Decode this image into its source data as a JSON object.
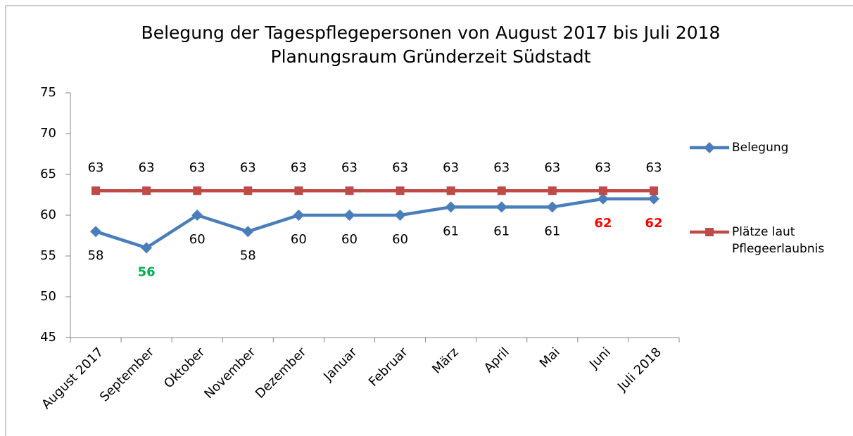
{
  "chart_data": {
    "type": "line",
    "title": "Belegung der Tagespflegepersonen von August 2017 bis Juli 2018",
    "subtitle": "Planungsraum Gründerzeit Südstadt",
    "categories": [
      "August 2017",
      "September",
      "Oktober",
      "November",
      "Dezember",
      "Januar",
      "Februar",
      "März",
      "April",
      "Mai",
      "Juni",
      "Juli 2018"
    ],
    "series": [
      {
        "name": "Belegung",
        "color": "#4a7ebb",
        "marker": "diamond",
        "label_position": "below",
        "values": [
          58,
          56,
          60,
          58,
          60,
          60,
          60,
          61,
          61,
          61,
          62,
          62
        ],
        "label_colors": [
          null,
          "#00b050",
          null,
          null,
          null,
          null,
          null,
          null,
          null,
          null,
          "#ff0000",
          "#ff0000"
        ]
      },
      {
        "name": "Plätze laut Pflegeerlaubnis",
        "color": "#be4b48",
        "marker": "square",
        "label_position": "above",
        "values": [
          63,
          63,
          63,
          63,
          63,
          63,
          63,
          63,
          63,
          63,
          63,
          63
        ]
      }
    ],
    "ylim": [
      45,
      75
    ],
    "yticks": [
      45,
      50,
      55,
      60,
      65,
      70,
      75
    ],
    "grid": false,
    "legend": "right"
  }
}
